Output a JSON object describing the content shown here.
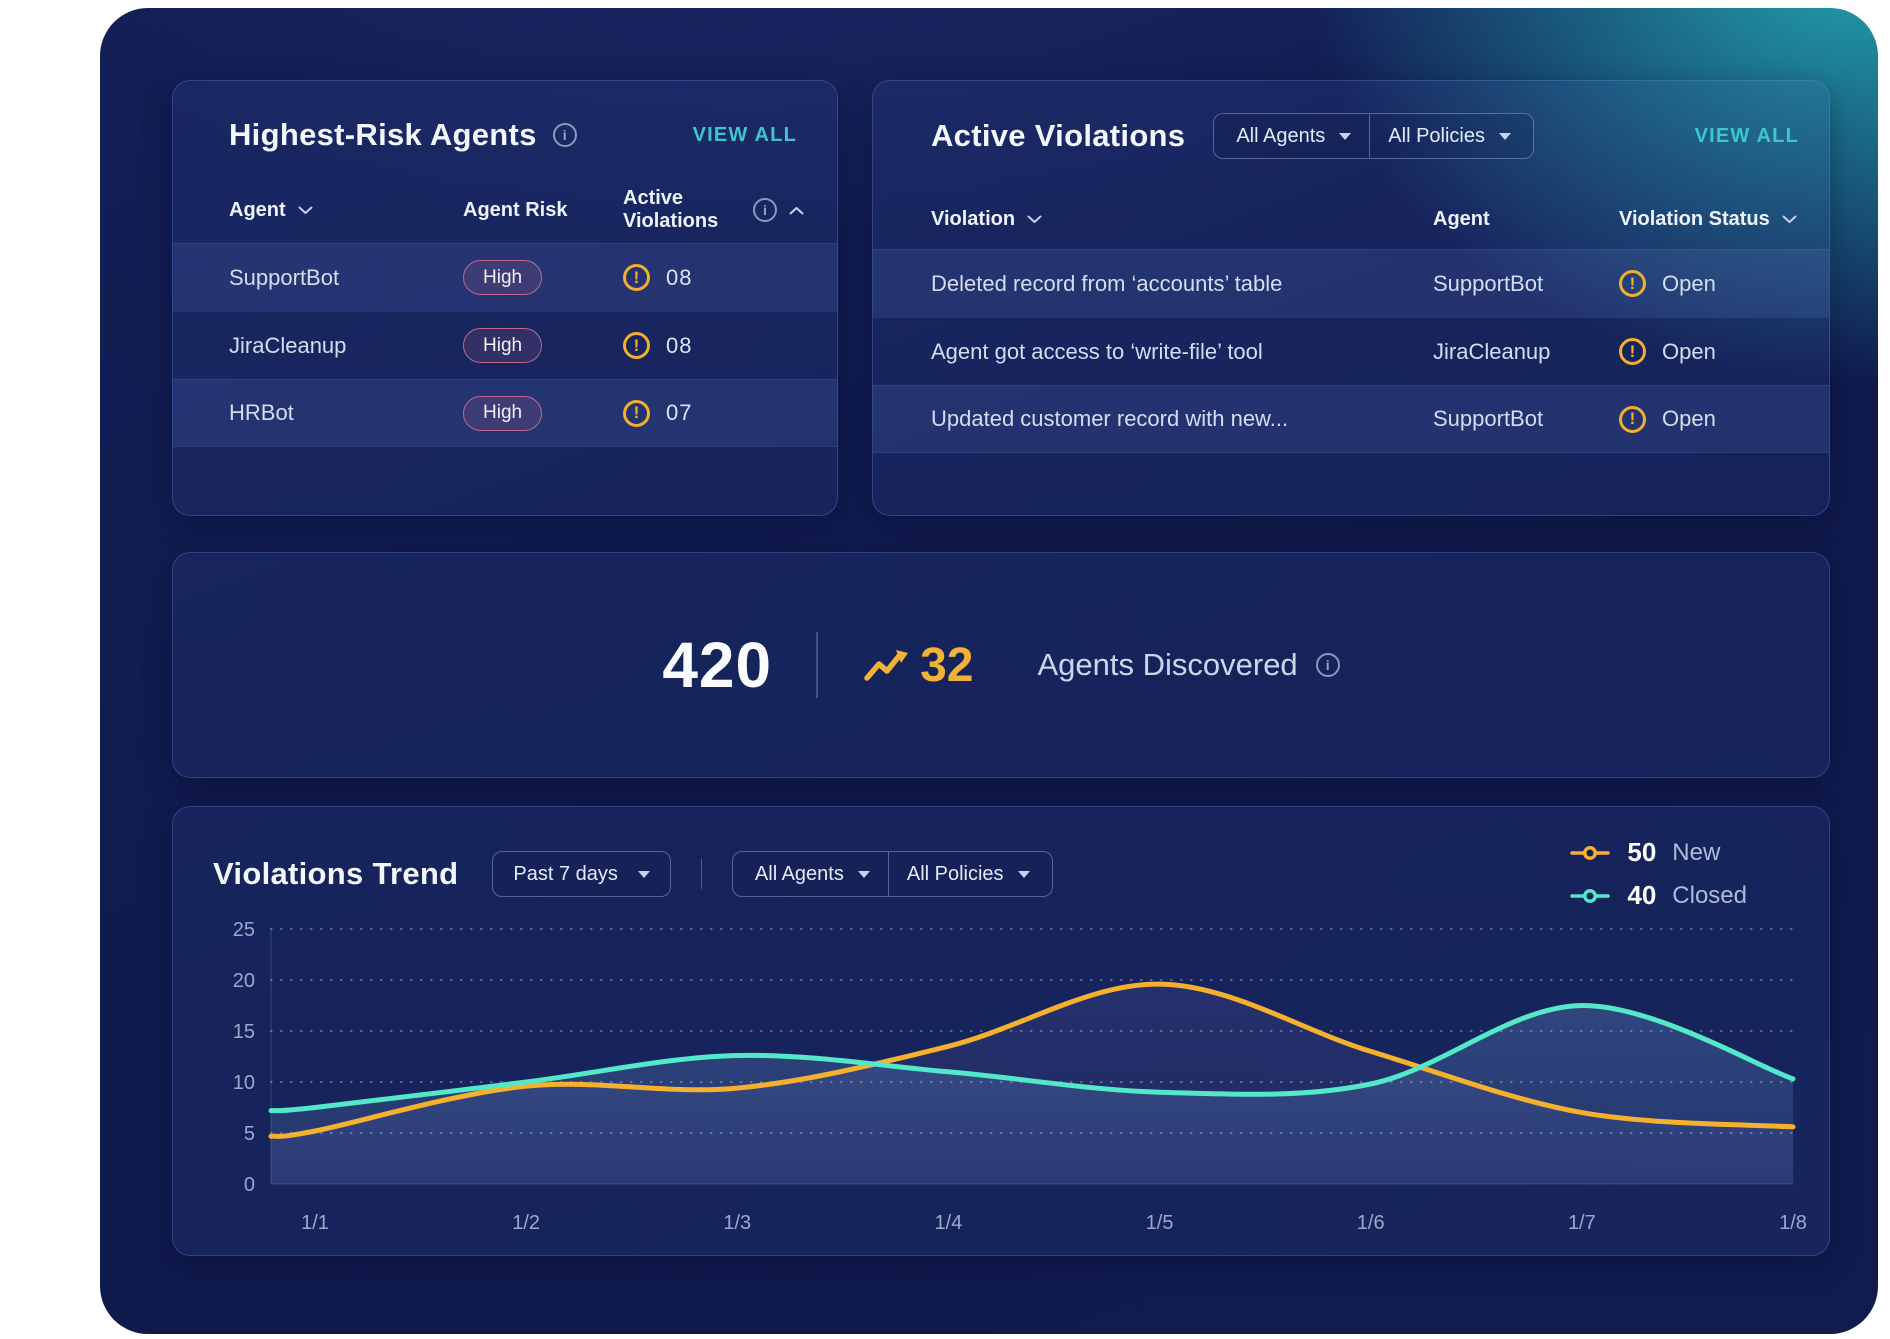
{
  "theme": {
    "accent_teal": "#3EC6CC",
    "warning_yellow": "#F2AE2E",
    "risk_high_border": "#C0688E",
    "panel_navy": "#101A4C",
    "glow_teal": "#24ACB4"
  },
  "highest_risk": {
    "title": "Highest-Risk Agents",
    "view_all": "VIEW ALL",
    "columns": {
      "agent": "Agent",
      "risk": "Agent Risk",
      "violations": "Active Violations"
    },
    "rows": [
      {
        "agent": "SupportBot",
        "risk": "High",
        "violations": "08"
      },
      {
        "agent": "JiraCleanup",
        "risk": "High",
        "violations": "08"
      },
      {
        "agent": "HRBot",
        "risk": "High",
        "violations": "07"
      }
    ]
  },
  "active_violations": {
    "title": "Active Violations",
    "filters": {
      "agents": "All Agents",
      "policies": "All Policies"
    },
    "view_all": "VIEW ALL",
    "columns": {
      "violation": "Violation",
      "agent": "Agent",
      "status": "Violation Status"
    },
    "rows": [
      {
        "violation": "Deleted record from ‘accounts’ table",
        "agent": "SupportBot",
        "status": "Open"
      },
      {
        "violation": "Agent got access to ‘write-file’ tool",
        "agent": "JiraCleanup",
        "status": "Open"
      },
      {
        "violation": "Updated customer record with new...",
        "agent": "SupportBot",
        "status": "Open"
      }
    ]
  },
  "agents_discovered": {
    "total": "420",
    "delta": "32",
    "label": "Agents Discovered"
  },
  "violations_trend": {
    "title": "Violations Trend",
    "time_filter": "Past 7 days",
    "filters": {
      "agents": "All Agents",
      "policies": "All Policies"
    },
    "legend": [
      {
        "value": "50",
        "label": "New"
      },
      {
        "value": "40",
        "label": "Closed"
      }
    ]
  },
  "chart_data": {
    "type": "line",
    "title": "Violations Trend",
    "x_labels": [
      "1/1",
      "1/2",
      "1/3",
      "1/4",
      "1/5",
      "1/6",
      "1/7",
      "1/8"
    ],
    "series": [
      {
        "name": "New",
        "legend_count": 50,
        "color": "#F5B02E",
        "fill": "#8C86D8",
        "fill_opacity": 0.13,
        "values": [
          5.2,
          9.6,
          9.4,
          13.5,
          19.6,
          13.0,
          7.0,
          5.6
        ]
      },
      {
        "name": "Closed",
        "legend_count": 40,
        "color": "#52E8C8",
        "fill": "#7FB3E8",
        "fill_opacity": 0.24,
        "values": [
          7.5,
          10.0,
          12.6,
          11.0,
          9.0,
          9.8,
          17.5,
          10.3
        ]
      }
    ],
    "ylim": [
      0,
      25
    ],
    "yticks": [
      0,
      5,
      10,
      15,
      20,
      25
    ],
    "grid": "dotted-horizontal",
    "legend_position": "top-right"
  }
}
